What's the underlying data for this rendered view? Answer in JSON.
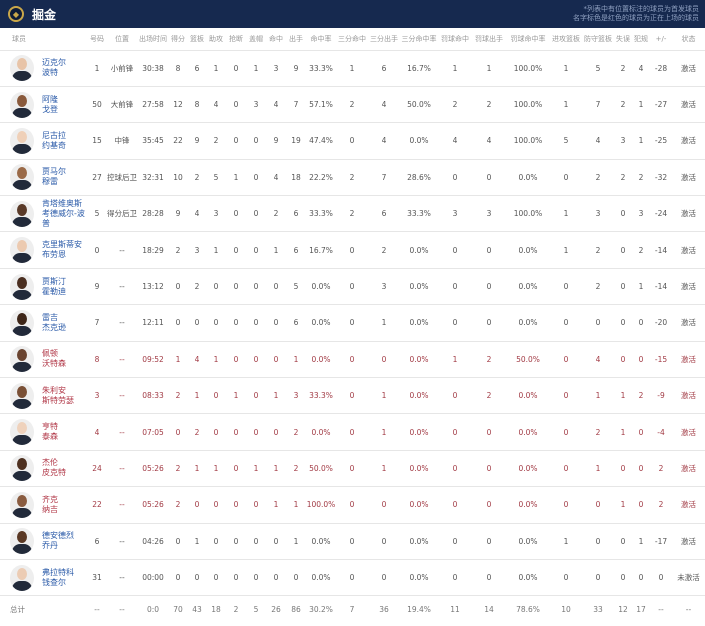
{
  "header": {
    "team_name": "掘金",
    "note_line1": "*列表中有位置标注的球员为首发球员",
    "note_line2": "名字标色是红色的球员为正在上场的球员",
    "logo_icon": "nuggets-logo"
  },
  "columns": [
    "球员",
    "号码",
    "位置",
    "出场时间",
    "得分",
    "篮板",
    "助攻",
    "抢断",
    "盖帽",
    "命中",
    "出手",
    "命中率",
    "三分命中",
    "三分出手",
    "三分命中率",
    "罚球命中",
    "罚球出手",
    "罚球命中率",
    "进攻篮板",
    "防守篮板",
    "失误",
    "犯规",
    "+/-",
    "状态"
  ],
  "colors": {
    "header_bg": "#16294f",
    "name_blue": "#2a5aa8",
    "on_court_red": "#b03545"
  },
  "players": [
    {
      "name1": "迈克尔",
      "name2": "波特",
      "on_court": false,
      "skin": "#e8c4a8",
      "stats": [
        "1",
        "小前锋",
        "30:38",
        "8",
        "6",
        "1",
        "0",
        "1",
        "3",
        "9",
        "33.3%",
        "1",
        "6",
        "16.7%",
        "1",
        "1",
        "100.0%",
        "1",
        "5",
        "2",
        "4",
        "-28",
        "激活"
      ]
    },
    {
      "name1": "阿隆",
      "name2": "戈登",
      "on_court": false,
      "skin": "#8a5a3c",
      "stats": [
        "50",
        "大前锋",
        "27:58",
        "12",
        "8",
        "4",
        "0",
        "3",
        "4",
        "7",
        "57.1%",
        "2",
        "4",
        "50.0%",
        "2",
        "2",
        "100.0%",
        "1",
        "7",
        "2",
        "1",
        "-27",
        "激活"
      ]
    },
    {
      "name1": "尼古拉",
      "name2": "约基奇",
      "on_court": false,
      "skin": "#efd0b8",
      "stats": [
        "15",
        "中锋",
        "35:45",
        "22",
        "9",
        "2",
        "0",
        "0",
        "9",
        "19",
        "47.4%",
        "0",
        "4",
        "0.0%",
        "4",
        "4",
        "100.0%",
        "5",
        "4",
        "3",
        "1",
        "-25",
        "激活"
      ]
    },
    {
      "name1": "贾马尔",
      "name2": "穆雷",
      "on_court": false,
      "skin": "#9a6a48",
      "stats": [
        "27",
        "控球后卫",
        "32:31",
        "10",
        "2",
        "5",
        "1",
        "0",
        "4",
        "18",
        "22.2%",
        "2",
        "7",
        "28.6%",
        "0",
        "0",
        "0.0%",
        "0",
        "2",
        "2",
        "2",
        "-32",
        "激活"
      ]
    },
    {
      "name1": "肯塔维奥斯",
      "name2": "考德威尔-波普",
      "on_court": false,
      "skin": "#5a3a28",
      "stats": [
        "5",
        "得分后卫",
        "28:28",
        "9",
        "4",
        "3",
        "0",
        "0",
        "2",
        "6",
        "33.3%",
        "2",
        "6",
        "33.3%",
        "3",
        "3",
        "100.0%",
        "1",
        "3",
        "0",
        "3",
        "-24",
        "激活"
      ]
    },
    {
      "name1": "克里斯蒂安",
      "name2": "布劳恩",
      "on_court": false,
      "skin": "#eccab0",
      "stats": [
        "0",
        "--",
        "18:29",
        "2",
        "3",
        "1",
        "0",
        "0",
        "1",
        "6",
        "16.7%",
        "0",
        "2",
        "0.0%",
        "0",
        "0",
        "0.0%",
        "1",
        "2",
        "0",
        "2",
        "-14",
        "激活"
      ]
    },
    {
      "name1": "贾斯汀",
      "name2": "霍勒迪",
      "on_court": false,
      "skin": "#4a2e20",
      "stats": [
        "9",
        "--",
        "13:12",
        "0",
        "2",
        "0",
        "0",
        "0",
        "0",
        "5",
        "0.0%",
        "0",
        "3",
        "0.0%",
        "0",
        "0",
        "0.0%",
        "0",
        "2",
        "0",
        "1",
        "-14",
        "激活"
      ]
    },
    {
      "name1": "雷吉",
      "name2": "杰克逊",
      "on_court": false,
      "skin": "#3e2618",
      "stats": [
        "7",
        "--",
        "12:11",
        "0",
        "0",
        "0",
        "0",
        "0",
        "0",
        "6",
        "0.0%",
        "0",
        "1",
        "0.0%",
        "0",
        "0",
        "0.0%",
        "0",
        "0",
        "0",
        "0",
        "-20",
        "激活"
      ]
    },
    {
      "name1": "佩顿",
      "name2": "沃特森",
      "on_court": true,
      "skin": "#6a4430",
      "stats": [
        "8",
        "--",
        "09:52",
        "1",
        "4",
        "1",
        "0",
        "0",
        "0",
        "1",
        "0.0%",
        "0",
        "0",
        "0.0%",
        "1",
        "2",
        "50.0%",
        "0",
        "4",
        "0",
        "0",
        "-15",
        "激活"
      ]
    },
    {
      "name1": "朱利安",
      "name2": "斯特劳瑟",
      "on_court": true,
      "skin": "#7a5036",
      "stats": [
        "3",
        "--",
        "08:33",
        "2",
        "1",
        "0",
        "1",
        "0",
        "1",
        "3",
        "33.3%",
        "0",
        "1",
        "0.0%",
        "0",
        "2",
        "0.0%",
        "0",
        "1",
        "1",
        "2",
        "-9",
        "激活"
      ]
    },
    {
      "name1": "亨特",
      "name2": "泰森",
      "on_court": true,
      "skin": "#efd2bc",
      "stats": [
        "4",
        "--",
        "07:05",
        "0",
        "2",
        "0",
        "0",
        "0",
        "0",
        "2",
        "0.0%",
        "0",
        "1",
        "0.0%",
        "0",
        "0",
        "0.0%",
        "0",
        "2",
        "1",
        "0",
        "-4",
        "激活"
      ]
    },
    {
      "name1": "杰伦",
      "name2": "皮克特",
      "on_court": true,
      "skin": "#4e3020",
      "stats": [
        "24",
        "--",
        "05:26",
        "2",
        "1",
        "1",
        "0",
        "1",
        "1",
        "2",
        "50.0%",
        "0",
        "1",
        "0.0%",
        "0",
        "0",
        "0.0%",
        "0",
        "1",
        "0",
        "0",
        "2",
        "激活"
      ]
    },
    {
      "name1": "齐克",
      "name2": "纳吉",
      "on_court": true,
      "skin": "#8a5c40",
      "stats": [
        "22",
        "--",
        "05:26",
        "2",
        "0",
        "0",
        "0",
        "0",
        "1",
        "1",
        "100.0%",
        "0",
        "0",
        "0.0%",
        "0",
        "0",
        "0.0%",
        "0",
        "0",
        "1",
        "0",
        "2",
        "激活"
      ]
    },
    {
      "name1": "德安德烈",
      "name2": "乔丹",
      "on_court": false,
      "skin": "#5a3824",
      "stats": [
        "6",
        "--",
        "04:26",
        "0",
        "1",
        "0",
        "0",
        "0",
        "0",
        "1",
        "0.0%",
        "0",
        "0",
        "0.0%",
        "0",
        "0",
        "0.0%",
        "1",
        "0",
        "0",
        "1",
        "-17",
        "激活"
      ]
    },
    {
      "name1": "弗拉特科",
      "name2": "钱查尔",
      "on_court": false,
      "skin": "#ecccb4",
      "stats": [
        "31",
        "--",
        "00:00",
        "0",
        "0",
        "0",
        "0",
        "0",
        "0",
        "0",
        "0.0%",
        "0",
        "0",
        "0.0%",
        "0",
        "0",
        "0.0%",
        "0",
        "0",
        "0",
        "0",
        "0",
        "未激活"
      ]
    }
  ],
  "totals": {
    "label": "总计",
    "stats": [
      "--",
      "--",
      "0:0",
      "70",
      "43",
      "18",
      "2",
      "5",
      "26",
      "86",
      "30.2%",
      "7",
      "36",
      "19.4%",
      "11",
      "14",
      "78.6%",
      "10",
      "33",
      "12",
      "17",
      "--",
      "--"
    ]
  }
}
